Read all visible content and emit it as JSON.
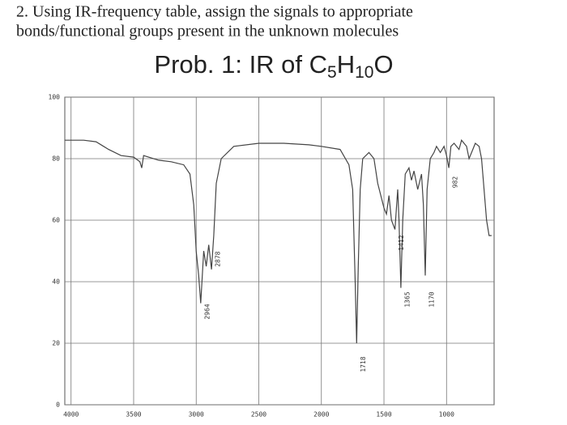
{
  "heading": [
    "2. Using IR-frequency table, assign the signals to appropriate",
    "bonds/functional groups present in the unknown molecules"
  ],
  "chart_data": {
    "type": "line",
    "title_parts": [
      "Prob. 1: IR of C",
      "5",
      "H",
      "10",
      "O"
    ],
    "x": [
      4050,
      3900,
      3800,
      3700,
      3600,
      3500,
      3450,
      3435,
      3420,
      3300,
      3200,
      3100,
      3050,
      3020,
      3000,
      2980,
      2964,
      2940,
      2920,
      2900,
      2878,
      2860,
      2840,
      2800,
      2700,
      2500,
      2300,
      2100,
      2000,
      1850,
      1780,
      1750,
      1730,
      1718,
      1705,
      1690,
      1670,
      1620,
      1580,
      1550,
      1500,
      1480,
      1460,
      1440,
      1412,
      1390,
      1380,
      1365,
      1350,
      1330,
      1300,
      1280,
      1260,
      1230,
      1200,
      1185,
      1170,
      1155,
      1130,
      1100,
      1080,
      1050,
      1020,
      1000,
      982,
      965,
      940,
      900,
      880,
      860,
      840,
      820,
      800,
      770,
      740,
      720,
      700,
      680,
      660,
      640
    ],
    "values": [
      86,
      86,
      85.5,
      83,
      81,
      80.5,
      79,
      77,
      81,
      79.5,
      79,
      78,
      75,
      65,
      50,
      42,
      33,
      50,
      45,
      52,
      44,
      55,
      72,
      80,
      84,
      85,
      85,
      84.5,
      84,
      83,
      78,
      70,
      40,
      20,
      45,
      70,
      80,
      82,
      80,
      72,
      64,
      62,
      68,
      60,
      57,
      70,
      60,
      38,
      60,
      75,
      77,
      73,
      76,
      70,
      75,
      65,
      42,
      70,
      80,
      82,
      84,
      82,
      84,
      81,
      77,
      84,
      85,
      83,
      86,
      85,
      84,
      80,
      82,
      85,
      84,
      80,
      70,
      60,
      55,
      55
    ],
    "color": "#444444",
    "xlim": [
      4050,
      620
    ],
    "ylim": [
      0,
      100
    ],
    "xticks": [
      4000,
      3500,
      3000,
      2500,
      2000,
      1500,
      1000
    ],
    "yticks": [
      0,
      20,
      40,
      60,
      80,
      100
    ],
    "peak_labels": [
      2964,
      2878,
      1718,
      1412,
      1365,
      1170,
      982
    ],
    "grid": true
  }
}
